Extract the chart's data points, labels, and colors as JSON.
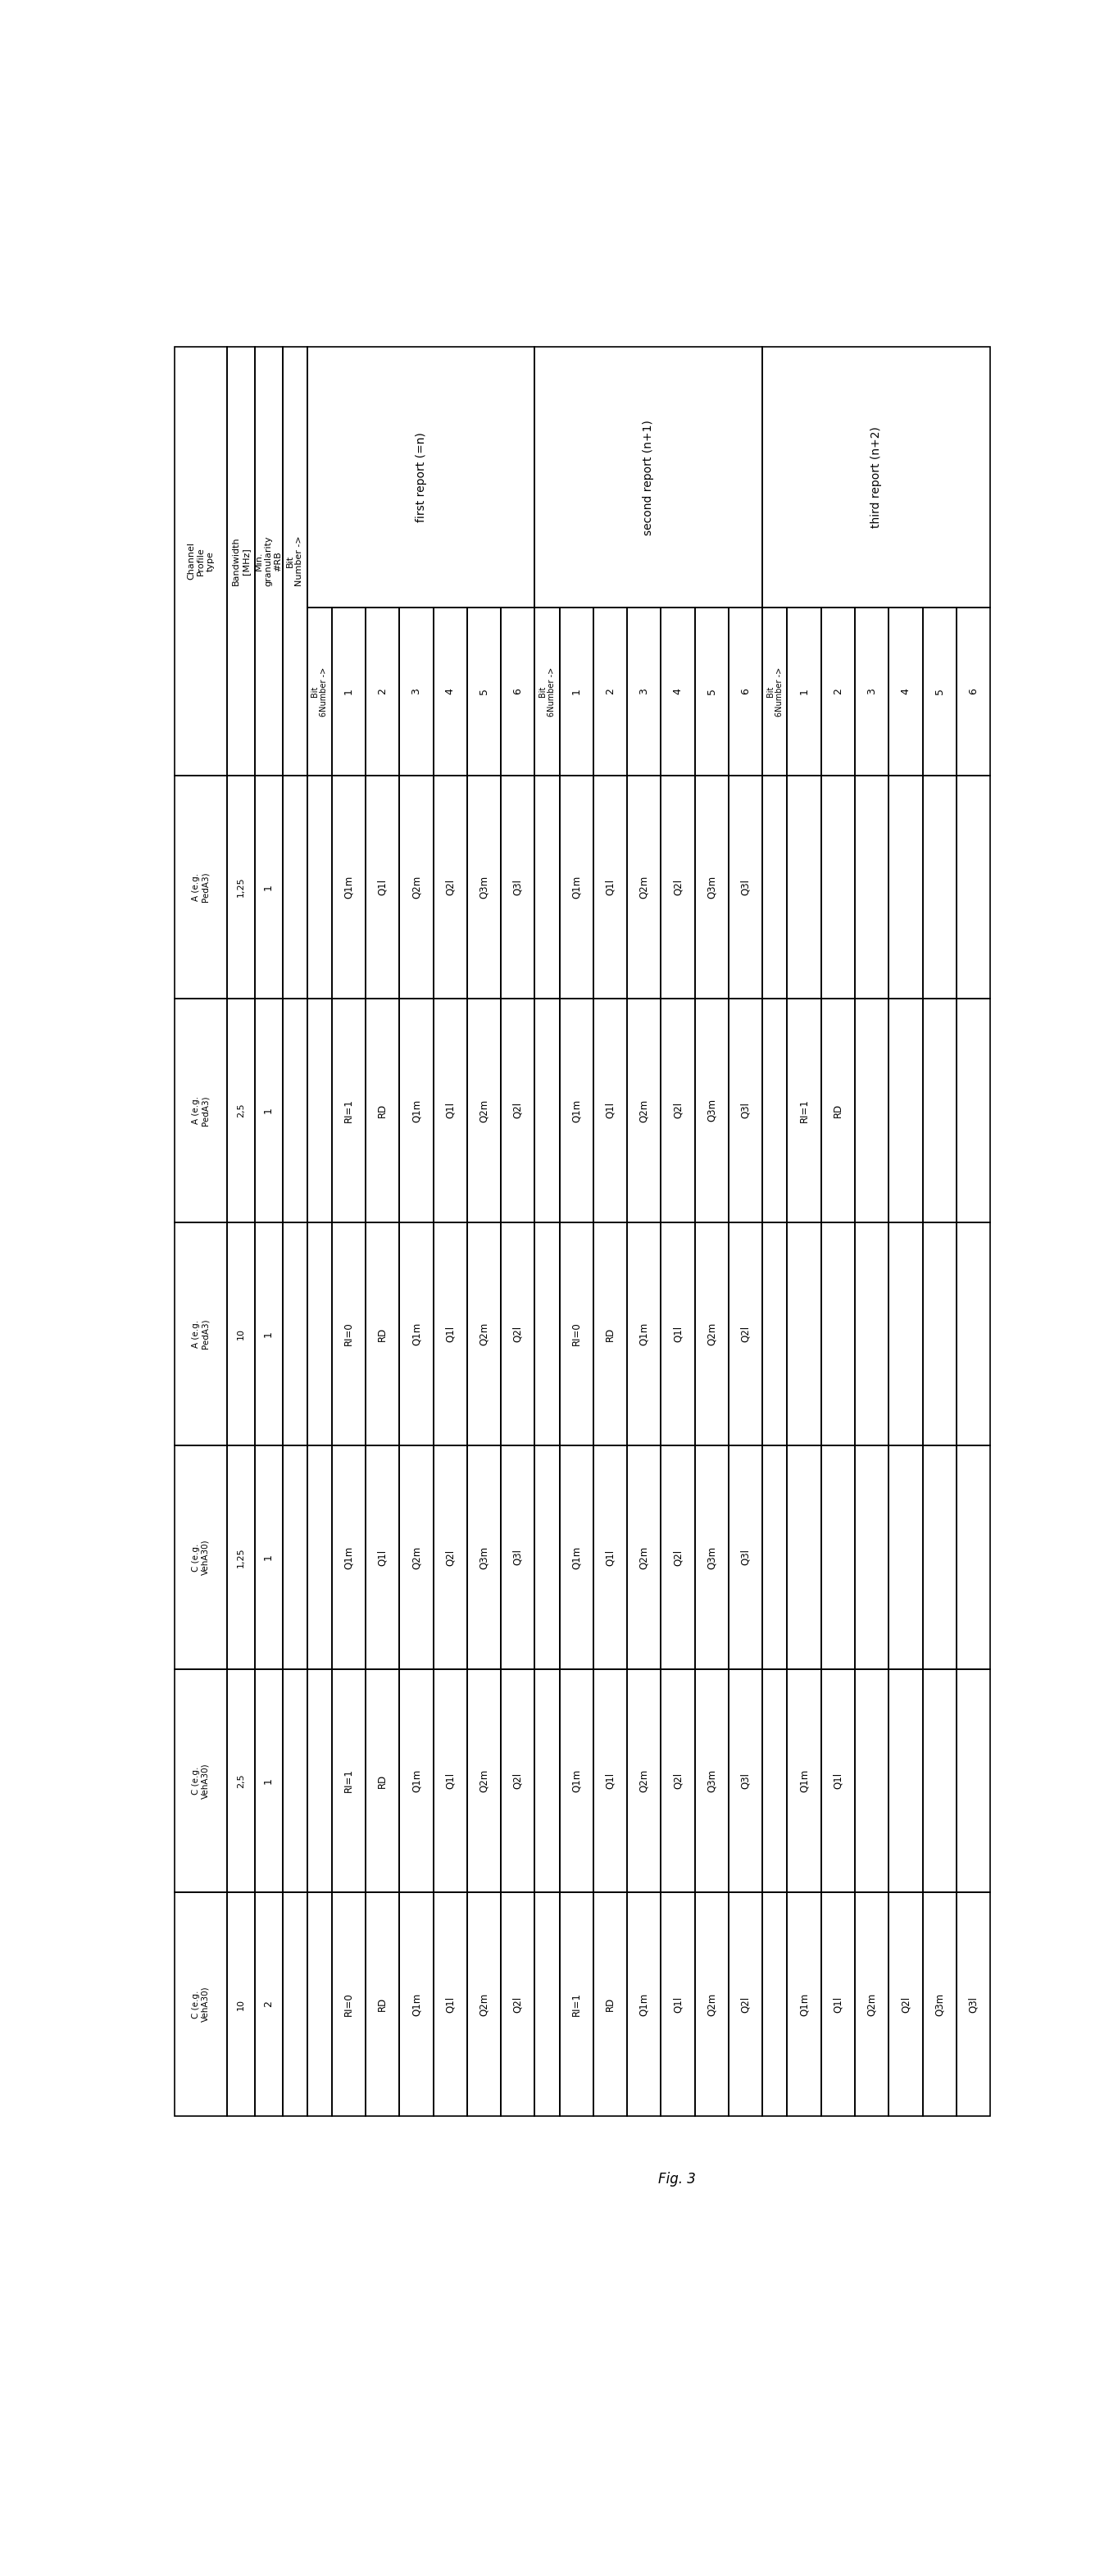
{
  "title": "Fig. 3",
  "fixed_col_headers": [
    "Channel\nProfile\ntype",
    "Bandwidth\n[MHz]",
    "Min.\ngranularity\n#RB",
    "Bit\nNumber ->"
  ],
  "report_headers": [
    "first report (=n)",
    "second report (n+1)",
    "third report (n+2)"
  ],
  "bit_label": "Bit\n6Number ->",
  "bit_numbers": [
    "1",
    "2",
    "3",
    "4",
    "5",
    "6"
  ],
  "data_rows": [
    {
      "profile": "A (e.g.\nPedA3)",
      "bw": "1,25",
      "gran": "1",
      "first": [
        "Q1m",
        "Q1l",
        "Q2m",
        "Q2l",
        "Q3m",
        "Q3l"
      ],
      "second": [
        "Q1m",
        "Q1l",
        "Q2m",
        "Q2l",
        "Q3m",
        "Q3l"
      ],
      "third": [
        "",
        "",
        "",
        "",
        "",
        ""
      ]
    },
    {
      "profile": "A (e.g.\nPedA3)",
      "bw": "2,5",
      "gran": "1",
      "first": [
        "RI=1",
        "RD",
        "Q1m",
        "Q1l",
        "Q2m",
        "Q2l"
      ],
      "second": [
        "Q1m",
        "Q1l",
        "Q2m",
        "Q2l",
        "Q3m",
        "Q3l"
      ],
      "third": [
        "RI=1",
        "RD",
        "",
        "",
        "",
        ""
      ]
    },
    {
      "profile": "A (e.g.\nPedA3)",
      "bw": "10",
      "gran": "1",
      "first": [
        "RI=0",
        "RD",
        "Q1m",
        "Q1l",
        "Q2m",
        "Q2l"
      ],
      "second": [
        "RI=0",
        "RD",
        "Q1m",
        "Q1l",
        "Q2m",
        "Q2l"
      ],
      "third": [
        "",
        "",
        "",
        "",
        "",
        ""
      ]
    },
    {
      "profile": "C (e.g.\nVehA30)",
      "bw": "1,25",
      "gran": "1",
      "first": [
        "Q1m",
        "Q1l",
        "Q2m",
        "Q2l",
        "Q3m",
        "Q3l"
      ],
      "second": [
        "Q1m",
        "Q1l",
        "Q2m",
        "Q2l",
        "Q3m",
        "Q3l"
      ],
      "third": [
        "",
        "",
        "",
        "",
        "",
        ""
      ]
    },
    {
      "profile": "C (e.g.\nVehA30)",
      "bw": "2,5",
      "gran": "1",
      "first": [
        "RI=1",
        "RD",
        "Q1m",
        "Q1l",
        "Q2m",
        "Q2l"
      ],
      "second": [
        "Q1m",
        "Q1l",
        "Q2m",
        "Q2l",
        "Q3m",
        "Q3l"
      ],
      "third": [
        "Q1m",
        "Q1l",
        "",
        "",
        "",
        ""
      ]
    },
    {
      "profile": "C (e.g.\nVehA30)",
      "bw": "10",
      "gran": "2",
      "first": [
        "RI=0",
        "RD",
        "Q1m",
        "Q1l",
        "Q2m",
        "Q2l"
      ],
      "second": [
        "RI=1",
        "RD",
        "Q1m",
        "Q1l",
        "Q2m",
        "Q2l"
      ],
      "third": [
        "Q1m",
        "Q1l",
        "Q2m",
        "Q2l",
        "Q3m",
        "Q3l"
      ]
    }
  ],
  "bg_color": "white",
  "line_color": "black",
  "text_color": "black",
  "lw": 1.2
}
